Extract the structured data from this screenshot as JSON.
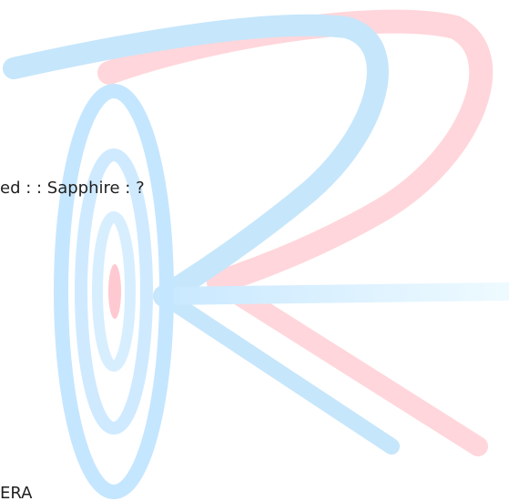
{
  "content": {
    "line_1": "ed : : Sapphire : ?",
    "line_2": "ERA"
  },
  "watermark": {
    "icon": "rr-logo-watermark-icon",
    "colors": {
      "blue": "#bfe3fb",
      "red": "#ffd2d7",
      "light_blue": "#dff4ff"
    }
  }
}
